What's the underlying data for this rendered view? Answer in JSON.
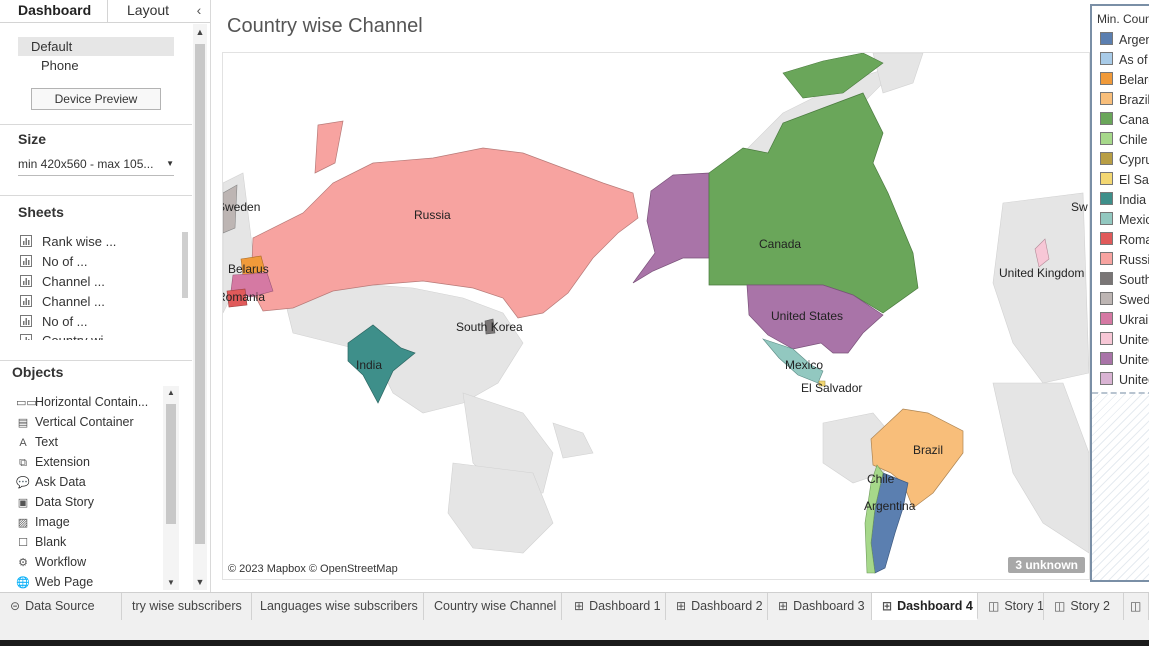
{
  "left_pane": {
    "tabs": {
      "dashboard": "Dashboard",
      "layout": "Layout"
    },
    "devices": {
      "default": "Default",
      "phone": "Phone",
      "preview_button": "Device Preview"
    },
    "size": {
      "heading": "Size",
      "value": "min 420x560 - max 105..."
    },
    "sheets": {
      "heading": "Sheets",
      "items": [
        "Rank wise ...",
        "No of ...",
        "Channel ...",
        "Channel ...",
        "No of ...",
        "Country wi..."
      ]
    },
    "objects": {
      "heading": "Objects",
      "items": [
        {
          "label": "Horizontal Contain...",
          "icon": "horizontal-container-icon",
          "glyph": "▭▭"
        },
        {
          "label": "Vertical Container",
          "icon": "vertical-container-icon",
          "glyph": "▤"
        },
        {
          "label": "Text",
          "icon": "text-icon",
          "glyph": "A"
        },
        {
          "label": "Extension",
          "icon": "extension-icon",
          "glyph": "⧉"
        },
        {
          "label": "Ask Data",
          "icon": "ask-data-icon",
          "glyph": "💬"
        },
        {
          "label": "Data Story",
          "icon": "data-story-icon",
          "glyph": "▣"
        },
        {
          "label": "Image",
          "icon": "image-icon",
          "glyph": "▨"
        },
        {
          "label": "Blank",
          "icon": "blank-icon",
          "glyph": "☐"
        },
        {
          "label": "Workflow",
          "icon": "workflow-icon",
          "glyph": "⚙"
        },
        {
          "label": "Web Page",
          "icon": "web-page-icon",
          "glyph": "🌐"
        }
      ]
    }
  },
  "dashboard": {
    "title": "Country wise Channel",
    "map_credit": "© 2023 Mapbox © OpenStreetMap",
    "unknown_badge": "3 unknown",
    "country_labels": [
      "Russia",
      "Canada",
      "United States",
      "India",
      "South Korea",
      "Mexico",
      "El Salvador",
      "Brazil",
      "Chile",
      "Argentina",
      "Belarus",
      "Romania",
      "United Kingdom",
      "Sweden",
      "Sw"
    ]
  },
  "legend": {
    "title": "Min. Country",
    "items": [
      {
        "label": "Argentina",
        "color": "#5b7fb0"
      },
      {
        "label": "As of ...",
        "color": "#a8cbe8"
      },
      {
        "label": "Belarus",
        "color": "#f09a3a"
      },
      {
        "label": "Brazil",
        "color": "#f8be7a"
      },
      {
        "label": "Canada",
        "color": "#6aa65a"
      },
      {
        "label": "Chile",
        "color": "#a6d88a"
      },
      {
        "label": "Cyprus",
        "color": "#b89e45"
      },
      {
        "label": "El Salvador",
        "color": "#f3d772"
      },
      {
        "label": "India",
        "color": "#3e8f8a"
      },
      {
        "label": "Mexico",
        "color": "#92c8c0"
      },
      {
        "label": "Romania",
        "color": "#e05a5a"
      },
      {
        "label": "Russia",
        "color": "#f7a3a0"
      },
      {
        "label": "South Korea",
        "color": "#7a7676"
      },
      {
        "label": "Sweden",
        "color": "#bdb5b3"
      },
      {
        "label": "Ukraine",
        "color": "#d579a3"
      },
      {
        "label": "United Kingdom",
        "color": "#f7c7d6"
      },
      {
        "label": "United States",
        "color": "#a974a8"
      },
      {
        "label": "United ...",
        "color": "#d9b3d3"
      }
    ]
  },
  "bottom_tabs": [
    {
      "label": "Data Source",
      "icon": "database-icon",
      "glyph": "⊝"
    },
    {
      "label": "try wise subscribers",
      "icon": "",
      "glyph": ""
    },
    {
      "label": "Languages wise subscribers",
      "icon": "",
      "glyph": ""
    },
    {
      "label": "Country wise Channel",
      "icon": "",
      "glyph": ""
    },
    {
      "label": "Dashboard 1",
      "icon": "dashboard-icon",
      "glyph": "⊞"
    },
    {
      "label": "Dashboard 2",
      "icon": "dashboard-icon",
      "glyph": "⊞"
    },
    {
      "label": "Dashboard 3",
      "icon": "dashboard-icon",
      "glyph": "⊞"
    },
    {
      "label": "Dashboard 4",
      "icon": "dashboard-icon",
      "glyph": "⊞"
    },
    {
      "label": "Story 1",
      "icon": "story-icon",
      "glyph": "◫"
    },
    {
      "label": "Story 2",
      "icon": "story-icon",
      "glyph": "◫"
    },
    {
      "label": "",
      "icon": "story-icon",
      "glyph": "◫"
    }
  ]
}
